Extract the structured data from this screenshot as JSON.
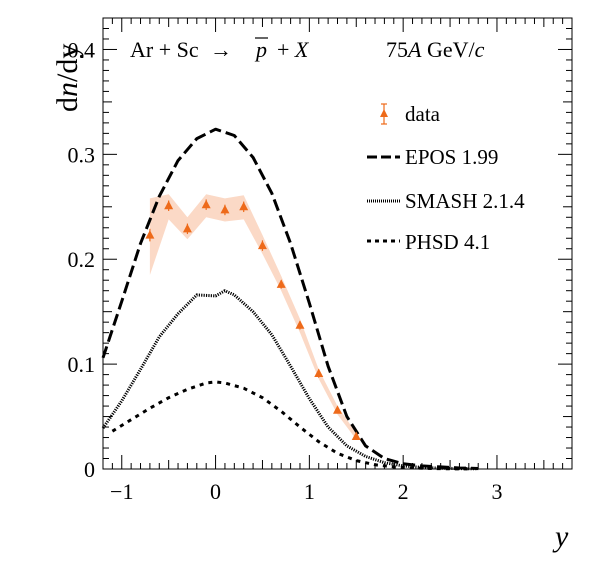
{
  "chart_data": {
    "type": "line",
    "title": "Ar + Sc → p̅ + X",
    "title_parts": {
      "left": "Ar + Sc",
      "arrow": "→",
      "particle": "p",
      "right": "+ X"
    },
    "energy": {
      "prefix": "75",
      "italic": "A",
      "middle": " GeV/",
      "italic2": "c"
    },
    "xlabel": "y",
    "ylabel": {
      "part1": "d",
      "part2": "n",
      "part3": "/dy"
    },
    "xlim": [
      -1.2,
      3.8
    ],
    "ylim": [
      0,
      0.43
    ],
    "xticks": [
      -1,
      0,
      1,
      2,
      3
    ],
    "yticks": [
      0,
      0.1,
      0.2,
      0.3,
      0.4
    ],
    "xtick_labels": [
      "−1",
      "0",
      "1",
      "2",
      "3"
    ],
    "ytick_labels": [
      "0",
      "0.1",
      "0.2",
      "0.3",
      "0.4"
    ],
    "grid": false,
    "legend_position": "top-right",
    "data_color": "#ee6a1a",
    "band_color": "#fbd9c6",
    "series": [
      {
        "name": "data",
        "style": "points",
        "x": [
          -0.7,
          -0.5,
          -0.3,
          -0.1,
          0.1,
          0.3,
          0.5,
          0.7,
          0.9,
          1.1,
          1.3,
          1.5
        ],
        "y": [
          0.223,
          0.251,
          0.229,
          0.252,
          0.247,
          0.25,
          0.213,
          0.176,
          0.137,
          0.091,
          0.056,
          0.031
        ],
        "yerr": [
          0.006,
          0.005,
          0.005,
          0.005,
          0.005,
          0.005,
          0.005,
          0.004,
          0.004,
          0.004,
          0.003,
          0.003
        ],
        "band_low": [
          0.185,
          0.238,
          0.219,
          0.24,
          0.236,
          0.238,
          0.205,
          0.17,
          0.13,
          0.086,
          0.052,
          0.028
        ],
        "band_high": [
          0.258,
          0.262,
          0.24,
          0.262,
          0.258,
          0.261,
          0.223,
          0.184,
          0.143,
          0.095,
          0.06,
          0.034
        ]
      },
      {
        "name": "EPOS 1.99",
        "style": "dashed",
        "x": [
          -1.2,
          -1.0,
          -0.8,
          -0.6,
          -0.4,
          -0.2,
          0.0,
          0.2,
          0.4,
          0.6,
          0.8,
          1.0,
          1.2,
          1.4,
          1.6,
          1.8,
          2.0,
          2.2,
          2.4,
          2.6,
          2.8
        ],
        "y": [
          0.106,
          0.16,
          0.215,
          0.26,
          0.294,
          0.315,
          0.324,
          0.318,
          0.297,
          0.263,
          0.215,
          0.158,
          0.098,
          0.05,
          0.022,
          0.01,
          0.005,
          0.003,
          0.002,
          0.001,
          0.0005
        ]
      },
      {
        "name": "SMASH 2.1.4",
        "style": "dotted",
        "x": [
          -1.2,
          -1.0,
          -0.8,
          -0.6,
          -0.4,
          -0.2,
          0.0,
          0.1,
          0.2,
          0.4,
          0.6,
          0.8,
          1.0,
          1.2,
          1.4,
          1.6,
          1.8,
          2.0,
          2.2,
          2.4,
          2.6,
          2.8
        ],
        "y": [
          0.039,
          0.065,
          0.095,
          0.126,
          0.148,
          0.166,
          0.165,
          0.17,
          0.166,
          0.15,
          0.128,
          0.098,
          0.067,
          0.04,
          0.022,
          0.012,
          0.006,
          0.003,
          0.0015,
          0.0008,
          0.0004,
          0.0002
        ]
      },
      {
        "name": "PHSD 4.1",
        "style": "dashed-short",
        "x": [
          -1.1,
          -0.9,
          -0.7,
          -0.5,
          -0.3,
          -0.1,
          0.0,
          0.1,
          0.3,
          0.5,
          0.7,
          0.9,
          1.1,
          1.3,
          1.5,
          1.7,
          1.9,
          2.1,
          2.3,
          2.5,
          2.7
        ],
        "y": [
          0.036,
          0.047,
          0.058,
          0.068,
          0.076,
          0.082,
          0.083,
          0.082,
          0.077,
          0.068,
          0.055,
          0.04,
          0.026,
          0.015,
          0.008,
          0.004,
          0.002,
          0.001,
          0.0005,
          0.0002,
          0.0001
        ]
      }
    ]
  }
}
